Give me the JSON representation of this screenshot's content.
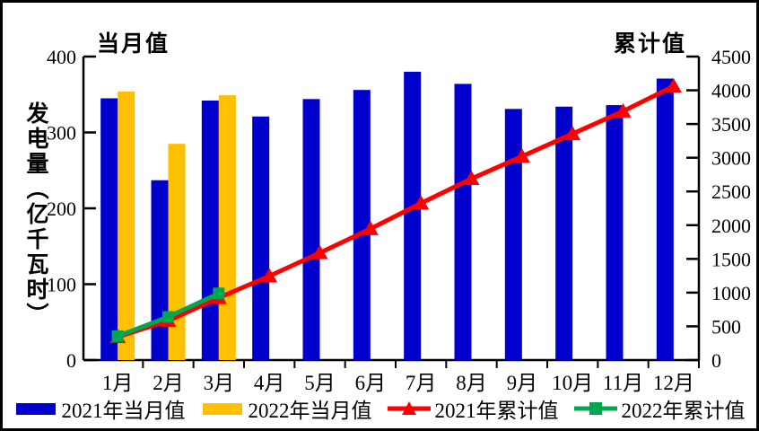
{
  "chart_data": {
    "type": "combo-bar-line",
    "categories": [
      "1月",
      "2月",
      "3月",
      "4月",
      "5月",
      "6月",
      "7月",
      "8月",
      "9月",
      "10月",
      "11月",
      "12月"
    ],
    "series": [
      {
        "name": "2021年当月值",
        "type": "bar",
        "axis": "left",
        "color": "#0000CC",
        "marker": "none",
        "values": [
          345,
          237,
          342,
          321,
          344,
          356,
          380,
          364,
          331,
          334,
          336,
          371
        ]
      },
      {
        "name": "2022年当月值",
        "type": "bar",
        "axis": "left",
        "color": "#FFC000",
        "marker": "none",
        "values": [
          354,
          285,
          349
        ]
      },
      {
        "name": "2021年累计值",
        "type": "line",
        "axis": "right",
        "color": "#FF0000",
        "marker": "triangle",
        "values": [
          345,
          582,
          924,
          1245,
          1589,
          1945,
          2325,
          2689,
          3020,
          3354,
          3690,
          4061
        ]
      },
      {
        "name": "2022年累计值",
        "type": "line",
        "axis": "right",
        "color": "#00A651",
        "marker": "square",
        "values": [
          354,
          639,
          988
        ]
      }
    ],
    "left_axis": {
      "header": "当月值",
      "title": "发电量（亿千瓦时）",
      "min": 0,
      "max": 400,
      "step": 100,
      "ticks": [
        0,
        100,
        200,
        300,
        400
      ]
    },
    "right_axis": {
      "header": "累计值",
      "min": 0,
      "max": 4500,
      "step": 500,
      "ticks": [
        0,
        500,
        1000,
        1500,
        2000,
        2500,
        3000,
        3500,
        4000,
        4500
      ]
    },
    "grid": "off",
    "legend_position": "bottom",
    "axis_color": "#000000"
  }
}
